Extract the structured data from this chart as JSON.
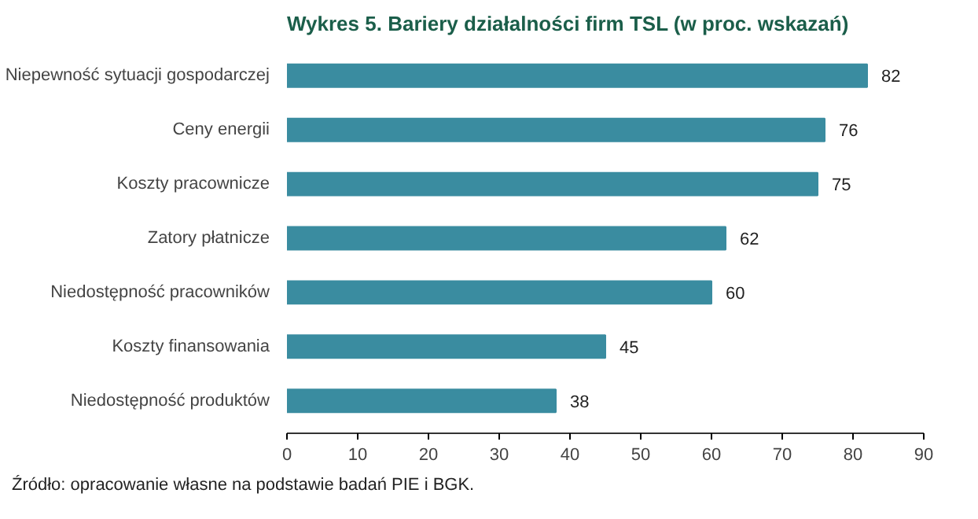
{
  "chart_data": {
    "type": "bar",
    "orientation": "horizontal",
    "title": "Wykres 5. Bariery działalności firm TSL (w proc. wskazań)",
    "categories": [
      "Niepewność sytuacji gospodarczej",
      "Ceny energii",
      "Koszty pracownicze",
      "Zatory płatnicze",
      "Niedostępność pracowników",
      "Koszty finansowania",
      "Niedostępność produktów"
    ],
    "values": [
      82,
      76,
      75,
      62,
      60,
      45,
      38
    ],
    "color": "#3a8ca0",
    "xlim": [
      0,
      90
    ],
    "xticks": [
      0,
      10,
      20,
      30,
      40,
      50,
      60,
      70,
      80,
      90
    ],
    "grid": false,
    "data_labels": true,
    "annotations": [
      "Źródło: opracowanie własne na podstawie badań PIE i BGK."
    ]
  }
}
